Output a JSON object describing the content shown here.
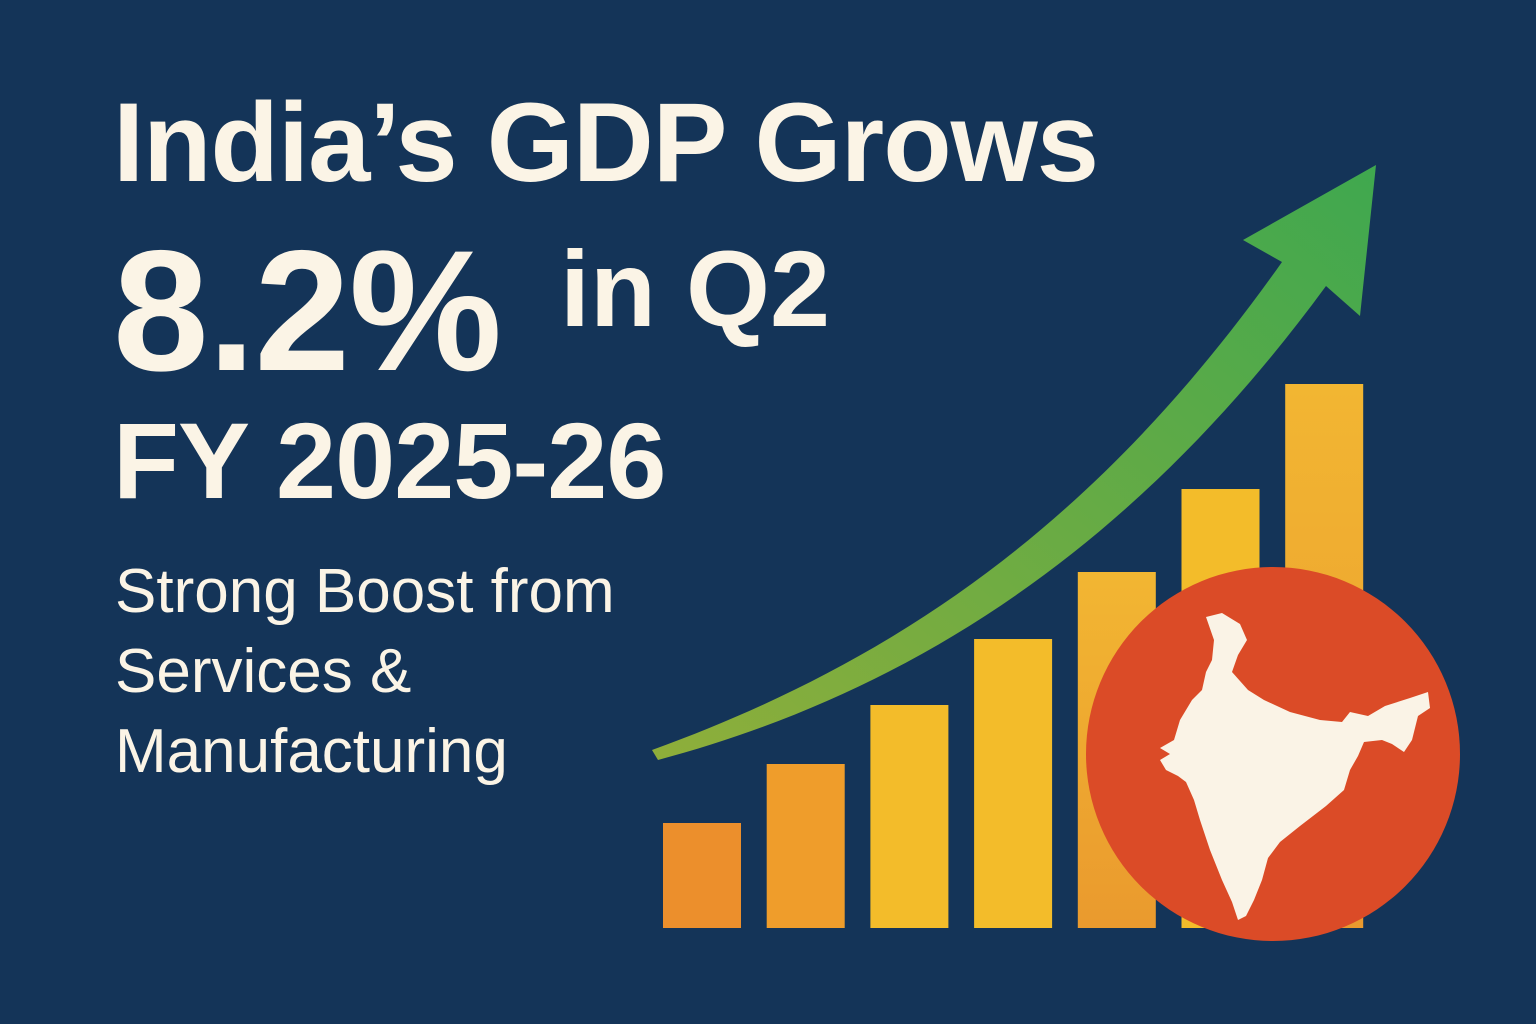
{
  "headline": {
    "line1": "India’s GDP Grows",
    "growth": "8.2%",
    "quarter": "in Q2",
    "fiscal_year": "FY 2025-26"
  },
  "subheadline": {
    "line1": "Strong Boost from",
    "line2": "Services &",
    "line3": "Manufacturing"
  },
  "graphic": {
    "icons": [
      "upward-trend-arrow-icon",
      "rising-bars",
      "india-map-icon"
    ],
    "colors": {
      "background": "#143458",
      "text": "#fbf4e6",
      "arrow_start": "#8fae3a",
      "arrow_end": "#3fa84f",
      "bar_orange": "#ec8f2c",
      "bar_yellow": "#f3bc2a",
      "circle": "#db4b27",
      "map": "#faf3e6"
    }
  }
}
